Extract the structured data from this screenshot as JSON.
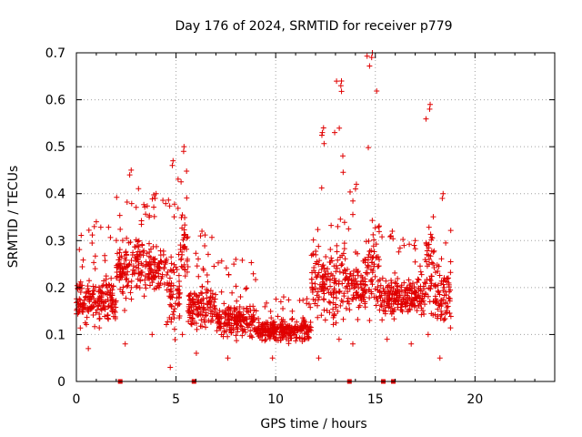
{
  "chart_data": {
    "type": "scatter",
    "title": "Day 176 of 2024, SRMTID for receiver p779",
    "xlabel": "GPS time / hours",
    "ylabel": "SRMTID / TECUs",
    "xlim": [
      0,
      24
    ],
    "ylim": [
      0,
      0.7
    ],
    "xticks": [
      "0",
      "5",
      "10",
      "15",
      "20"
    ],
    "yticks": [
      "0",
      "0.1",
      "0.2",
      "0.3",
      "0.4",
      "0.5",
      "0.6",
      "0.7"
    ],
    "grid": true,
    "color": "#e00000",
    "marker": "plus",
    "description_points": "Dense scatter of SRMTID estimates from 0 to ~18.8 h; values mostly 0.05–0.30 TECU with spikes up to ~0.70 near 14.7 h",
    "data_segments": [
      {
        "x_start": 0.0,
        "x_end": 2.0,
        "y_min": 0.07,
        "y_max": 0.34,
        "y_center": 0.17
      },
      {
        "x_start": 2.0,
        "x_end": 3.5,
        "y_min": 0.08,
        "y_max": 0.45,
        "y_center": 0.24
      },
      {
        "x_start": 3.5,
        "x_end": 4.5,
        "y_min": 0.1,
        "y_max": 0.4,
        "y_center": 0.24
      },
      {
        "x_start": 4.5,
        "x_end": 5.2,
        "y_min": 0.03,
        "y_max": 0.47,
        "y_center": 0.18
      },
      {
        "x_start": 5.2,
        "x_end": 5.6,
        "y_min": 0.1,
        "y_max": 0.5,
        "y_center": 0.28
      },
      {
        "x_start": 5.6,
        "x_end": 7.0,
        "y_min": 0.06,
        "y_max": 0.32,
        "y_center": 0.16
      },
      {
        "x_start": 7.0,
        "x_end": 9.0,
        "y_min": 0.05,
        "y_max": 0.26,
        "y_center": 0.13
      },
      {
        "x_start": 9.0,
        "x_end": 11.8,
        "y_min": 0.05,
        "y_max": 0.18,
        "y_center": 0.11
      },
      {
        "x_start": 11.8,
        "x_end": 13.0,
        "y_min": 0.05,
        "y_max": 0.54,
        "y_center": 0.2
      },
      {
        "x_start": 13.0,
        "x_end": 13.6,
        "y_min": 0.09,
        "y_max": 0.64,
        "y_center": 0.22
      },
      {
        "x_start": 13.6,
        "x_end": 14.5,
        "y_min": 0.08,
        "y_max": 0.42,
        "y_center": 0.2
      },
      {
        "x_start": 14.5,
        "x_end": 15.2,
        "y_min": 0.13,
        "y_max": 0.7,
        "y_center": 0.25
      },
      {
        "x_start": 15.2,
        "x_end": 16.5,
        "y_min": 0.09,
        "y_max": 0.32,
        "y_center": 0.18
      },
      {
        "x_start": 16.5,
        "x_end": 17.5,
        "y_min": 0.08,
        "y_max": 0.3,
        "y_center": 0.18
      },
      {
        "x_start": 17.5,
        "x_end": 18.0,
        "y_min": 0.1,
        "y_max": 0.59,
        "y_center": 0.24
      },
      {
        "x_start": 18.0,
        "x_end": 18.8,
        "y_min": 0.05,
        "y_max": 0.4,
        "y_center": 0.18
      }
    ],
    "x_axis_markers": [
      2.2,
      5.9,
      13.7,
      15.4,
      15.9
    ]
  }
}
